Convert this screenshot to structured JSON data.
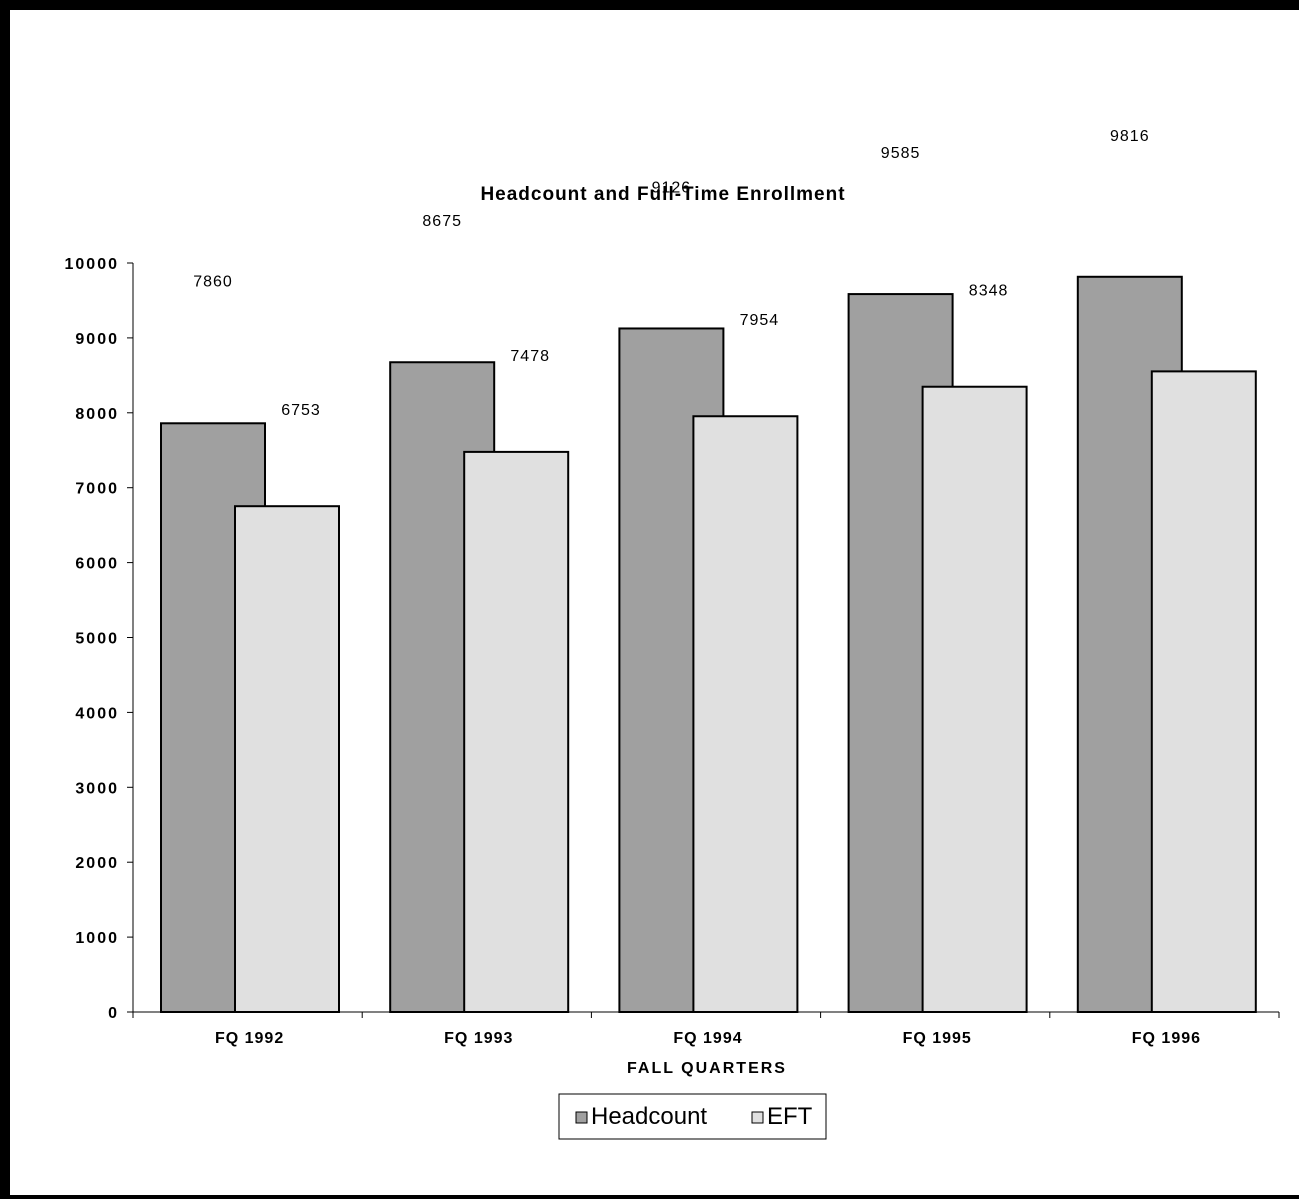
{
  "chart_data": {
    "type": "bar",
    "title": "Headcount and Full-Time Enrollment",
    "xlabel": "FALL QUARTERS",
    "ylabel": "",
    "categories": [
      "FQ 1992",
      "FQ 1993",
      "FQ 1994",
      "FQ 1995",
      "FQ 1996"
    ],
    "series": [
      {
        "name": "Headcount",
        "values": [
          7860,
          8675,
          9126,
          9585,
          9816
        ],
        "color": "#a0a0a0",
        "data_labels": [
          "7860",
          "8675",
          "9126",
          "9585",
          "9816"
        ]
      },
      {
        "name": "EFT",
        "values": [
          6753,
          7478,
          7954,
          8348,
          8553
        ],
        "color": "#e0e0e0",
        "data_labels": [
          "6753",
          "7478",
          "7954",
          "8348",
          ""
        ]
      }
    ],
    "ylim": [
      0,
      10000
    ],
    "yticks": [
      "0",
      "1000",
      "2000",
      "3000",
      "4000",
      "5000",
      "6000",
      "7000",
      "8000",
      "9000",
      "10000"
    ],
    "grid": false,
    "legend_position": "bottom-center"
  }
}
